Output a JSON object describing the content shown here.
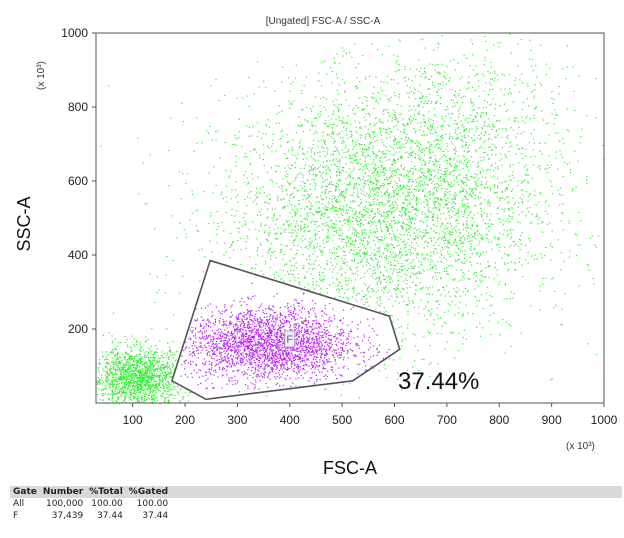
{
  "chart_data": {
    "type": "scatter",
    "title": "[Ungated] FSC-A / SSC-A",
    "xlabel": "FSC-A",
    "ylabel": "SSC-A",
    "x_multiplier": "(x 10³)",
    "y_multiplier": "(x 10³)",
    "xlim": [
      30,
      1000
    ],
    "ylim": [
      0,
      1000
    ],
    "x_ticks": [
      100,
      200,
      300,
      400,
      500,
      600,
      700,
      800,
      900,
      1000
    ],
    "y_ticks": [
      200,
      400,
      600,
      800,
      1000
    ],
    "grid": false,
    "series": [
      {
        "name": "Ungated",
        "color": "#33ee33",
        "distribution": [
          {
            "x_mean": 560,
            "y_mean": 500,
            "x_sd": 150,
            "y_sd": 170,
            "approx_events": 3800
          },
          {
            "x_mean": 110,
            "y_mean": 70,
            "x_sd": 45,
            "y_sd": 40,
            "approx_events": 1600
          },
          {
            "x_mean": 700,
            "y_mean": 700,
            "x_sd": 120,
            "y_sd": 160,
            "approx_events": 1200
          }
        ]
      },
      {
        "name": "F",
        "color": "#bb22ee",
        "distribution": [
          {
            "x_mean": 360,
            "y_mean": 160,
            "x_sd": 80,
            "y_sd": 50,
            "approx_events": 2600
          }
        ]
      }
    ],
    "gate": {
      "name": "F",
      "polygon": [
        [
          175,
          60
        ],
        [
          248,
          385
        ],
        [
          590,
          235
        ],
        [
          610,
          145
        ],
        [
          520,
          60
        ],
        [
          240,
          10
        ]
      ],
      "percent_label": "37.44%",
      "color": "#555555"
    }
  },
  "stats_table": {
    "headers": [
      "Gate",
      "Number",
      "%Total",
      "%Gated"
    ],
    "rows": [
      [
        "All",
        "100,000",
        "100.00",
        "100.00"
      ],
      [
        "F",
        "37,439",
        "37.44",
        "37.44"
      ]
    ]
  }
}
